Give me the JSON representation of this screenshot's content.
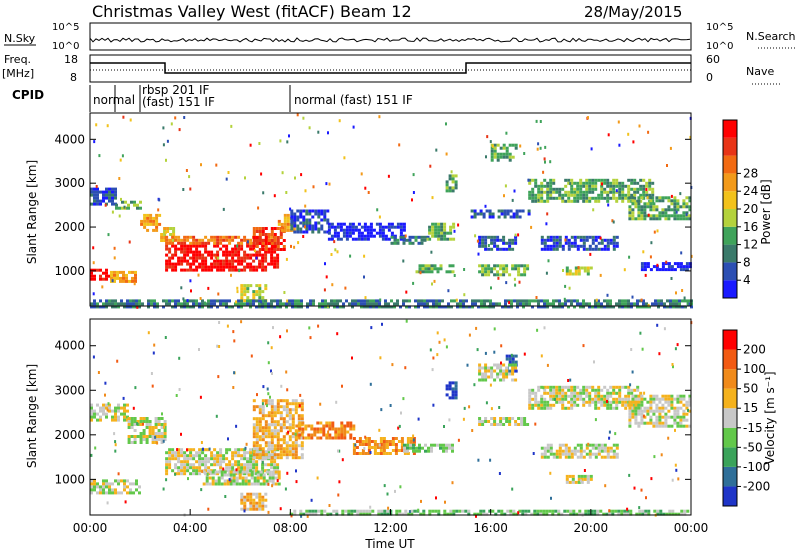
{
  "header": {
    "title": "Christmas Valley West (fitACF)",
    "beam": "Beam 12",
    "date": "28/May/2015"
  },
  "noise_panel": {
    "left_label": "N.Sky",
    "left_ticks": [
      "10^5",
      "10^0"
    ],
    "right_ticks": [
      "10^5",
      "10^0"
    ],
    "right_label": "N.Search"
  },
  "freq_panel": {
    "left_label_1": "Freq.",
    "left_label_2": "[MHz]",
    "left_ticks": [
      "18",
      "8"
    ],
    "right_ticks": [
      "60",
      "0"
    ],
    "right_label": "Nave"
  },
  "cpid": {
    "label": "CPID",
    "segments": [
      {
        "text_1": "normal",
        "text_2": ""
      },
      {
        "text_1": "rbsp 201 IF",
        "text_2": "(fast) 151 IF"
      },
      {
        "text_1": "normal (fast) 151 IF",
        "text_2": ""
      }
    ]
  },
  "chart_data": [
    {
      "type": "heatmap",
      "name": "power",
      "ylabel": "Slant Range [km]",
      "ylim": [
        200,
        4600
      ],
      "xlim_hours": [
        0,
        24
      ],
      "yticks": [
        "1000",
        "2000",
        "3000",
        "4000"
      ],
      "colorbar": {
        "label": "Power [dB]",
        "ticks": [
          "4",
          "8",
          "12",
          "16",
          "20",
          "24",
          "28"
        ],
        "colors": [
          "#1a1aff",
          "#2c4fb3",
          "#3a7a6a",
          "#3fa35a",
          "#b4d23c",
          "#f2c21b",
          "#f39a1a",
          "#f26a12",
          "#e83416",
          "#ff0000"
        ]
      },
      "bands": [
        {
          "h0": 0,
          "h1": 0.8,
          "r0": 800,
          "r1": 1050,
          "level": 9
        },
        {
          "h0": 0.8,
          "h1": 1.8,
          "r0": 750,
          "r1": 1000,
          "level": 6
        },
        {
          "h0": 0,
          "h1": 1.0,
          "r0": 2500,
          "r1": 2900,
          "level": 1
        },
        {
          "h0": 1.0,
          "h1": 2.0,
          "r0": 2400,
          "r1": 2600,
          "level": 3
        },
        {
          "h0": 2.0,
          "h1": 2.8,
          "r0": 1900,
          "r1": 2300,
          "level": 6
        },
        {
          "h0": 2.8,
          "h1": 3.3,
          "r0": 1700,
          "r1": 2000,
          "level": 5
        },
        {
          "h0": 3.0,
          "h1": 7.5,
          "r0": 1050,
          "r1": 1600,
          "level": 9
        },
        {
          "h0": 3.0,
          "h1": 7.5,
          "r0": 1600,
          "r1": 1800,
          "level": 7
        },
        {
          "h0": 6.5,
          "h1": 7.8,
          "r0": 1500,
          "r1": 2000,
          "level": 8
        },
        {
          "h0": 7.5,
          "h1": 8.2,
          "r0": 1900,
          "r1": 2300,
          "level": 6
        },
        {
          "h0": 6.0,
          "h1": 7.0,
          "r0": 300,
          "r1": 700,
          "level": 4
        },
        {
          "h0": 8.0,
          "h1": 9.5,
          "r0": 1900,
          "r1": 2400,
          "level": 1
        },
        {
          "h0": 9.5,
          "h1": 12.5,
          "r0": 1700,
          "r1": 2100,
          "level": 0
        },
        {
          "h0": 12.0,
          "h1": 13.5,
          "r0": 1600,
          "r1": 1800,
          "level": 2
        },
        {
          "h0": 13.5,
          "h1": 14.5,
          "r0": 1700,
          "r1": 2100,
          "level": 3
        },
        {
          "h0": 13.0,
          "h1": 14.5,
          "r0": 950,
          "r1": 1150,
          "level": 3
        },
        {
          "h0": 14.2,
          "h1": 14.6,
          "r0": 2800,
          "r1": 3200,
          "level": 3
        },
        {
          "h0": 15.2,
          "h1": 17.5,
          "r0": 2200,
          "r1": 2400,
          "level": 1
        },
        {
          "h0": 15.5,
          "h1": 17.0,
          "r0": 1500,
          "r1": 1800,
          "level": 1
        },
        {
          "h0": 15.5,
          "h1": 17.5,
          "r0": 900,
          "r1": 1150,
          "level": 3
        },
        {
          "h0": 16.0,
          "h1": 17.0,
          "r0": 3500,
          "r1": 3900,
          "level": 3
        },
        {
          "h0": 17.5,
          "h1": 22.5,
          "r0": 2600,
          "r1": 3100,
          "level": 3
        },
        {
          "h0": 18.0,
          "h1": 21.0,
          "r0": 1500,
          "r1": 1800,
          "level": 1
        },
        {
          "h0": 19.0,
          "h1": 20.0,
          "r0": 900,
          "r1": 1100,
          "level": 4
        },
        {
          "h0": 21.5,
          "h1": 24.0,
          "r0": 2200,
          "r1": 2700,
          "level": 3
        },
        {
          "h0": 22.0,
          "h1": 24.0,
          "r0": 1000,
          "r1": 1200,
          "level": 0
        },
        {
          "h0": 0,
          "h1": 24.0,
          "r0": 200,
          "r1": 350,
          "level": 2
        }
      ]
    },
    {
      "type": "heatmap",
      "name": "velocity",
      "ylabel": "Slant Range [km]",
      "xlabel": "Time UT",
      "ylim": [
        200,
        4600
      ],
      "xlim_hours": [
        0,
        24
      ],
      "yticks": [
        "1000",
        "2000",
        "3000",
        "4000"
      ],
      "xticks": [
        "00:00",
        "04:00",
        "08:00",
        "12:00",
        "16:00",
        "20:00",
        "00:00"
      ],
      "colorbar": {
        "label": "Velocity [m s⁻¹]",
        "ticks": [
          "200",
          "100",
          "50",
          "15",
          "-15",
          "-50",
          "-100",
          "-200"
        ],
        "colors": [
          "#1f35c8",
          "#2f6f99",
          "#3aa35a",
          "#62c84a",
          "#c8c8c8",
          "#f5b21d",
          "#f08a1a",
          "#f25a12",
          "#ff0000"
        ]
      },
      "bands": [
        {
          "h0": 0,
          "h1": 2.0,
          "r0": 700,
          "r1": 1000,
          "level": 4
        },
        {
          "h0": 0,
          "h1": 1.5,
          "r0": 2300,
          "r1": 2700,
          "level": 4
        },
        {
          "h0": 1.5,
          "h1": 3.0,
          "r0": 1800,
          "r1": 2400,
          "level": 4
        },
        {
          "h0": 3.0,
          "h1": 7.5,
          "r0": 1150,
          "r1": 1700,
          "level": 4
        },
        {
          "h0": 4.5,
          "h1": 7.5,
          "r0": 900,
          "r1": 1200,
          "level": 4
        },
        {
          "h0": 6.5,
          "h1": 8.5,
          "r0": 1500,
          "r1": 2800,
          "level": 5
        },
        {
          "h0": 8.2,
          "h1": 10.5,
          "r0": 1950,
          "r1": 2300,
          "level": 6
        },
        {
          "h0": 10.5,
          "h1": 13.0,
          "r0": 1600,
          "r1": 1950,
          "level": 6
        },
        {
          "h0": 12.5,
          "h1": 14.5,
          "r0": 1600,
          "r1": 1800,
          "level": 3
        },
        {
          "h0": 14.2,
          "h1": 14.6,
          "r0": 2800,
          "r1": 3200,
          "level": 0
        },
        {
          "h0": 16.6,
          "h1": 17.0,
          "r0": 3400,
          "r1": 3800,
          "level": 0
        },
        {
          "h0": 15.5,
          "h1": 17.0,
          "r0": 3200,
          "r1": 3600,
          "level": 4
        },
        {
          "h0": 15.5,
          "h1": 17.5,
          "r0": 2200,
          "r1": 2400,
          "level": 4
        },
        {
          "h0": 17.5,
          "h1": 22.0,
          "r0": 2600,
          "r1": 3100,
          "level": 4
        },
        {
          "h0": 18.0,
          "h1": 21.0,
          "r0": 1500,
          "r1": 1800,
          "level": 4
        },
        {
          "h0": 19.0,
          "h1": 20.0,
          "r0": 900,
          "r1": 1100,
          "level": 4
        },
        {
          "h0": 21.5,
          "h1": 24.0,
          "r0": 2200,
          "r1": 2900,
          "level": 4
        },
        {
          "h0": 6.0,
          "h1": 7.0,
          "r0": 300,
          "r1": 700,
          "level": 5
        },
        {
          "h0": 8.0,
          "h1": 24.0,
          "r0": 200,
          "r1": 320,
          "level": 3
        }
      ]
    }
  ]
}
